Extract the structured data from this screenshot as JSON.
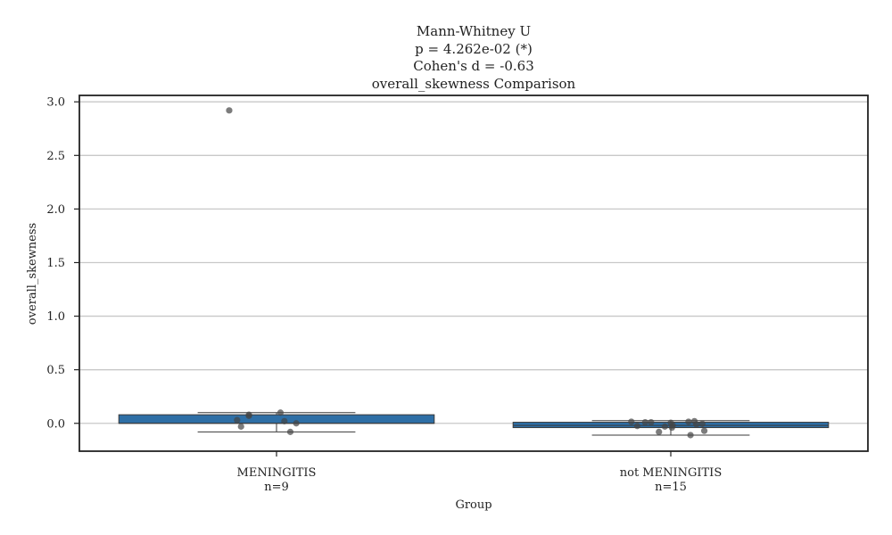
{
  "chart_data": {
    "type": "box",
    "title_lines": [
      "Mann-Whitney U",
      "p = 4.262e-02 (*)",
      "Cohen's d = -0.63",
      "overall_skewness Comparison"
    ],
    "xlabel": "Group",
    "ylabel": "overall_skewness",
    "ylim": [
      -0.26,
      3.06
    ],
    "yticks": [
      0.0,
      0.5,
      1.0,
      1.5,
      2.0,
      2.5,
      3.0
    ],
    "ytick_labels": [
      "0.0",
      "0.5",
      "1.0",
      "1.5",
      "2.0",
      "2.5",
      "3.0"
    ],
    "grid": true,
    "box_color": "#2e6fa6",
    "point_color": "#444444",
    "groups": [
      {
        "name": "MENINGITIS",
        "n_label": "n=9",
        "box": {
          "q1": 0.0,
          "median": 0.0,
          "q3": 0.08,
          "whisker_low": -0.08,
          "whisker_high": 0.1
        },
        "points": [
          {
            "x": -0.12,
            "y": 2.92
          },
          {
            "x": -0.1,
            "y": 0.03
          },
          {
            "x": -0.09,
            "y": -0.03
          },
          {
            "x": -0.07,
            "y": 0.08
          },
          {
            "x": 0.01,
            "y": 0.1
          },
          {
            "x": 0.02,
            "y": 0.02
          },
          {
            "x": 0.035,
            "y": -0.08
          },
          {
            "x": 0.05,
            "y": 0.0
          },
          {
            "x": -0.07,
            "y": 0.07
          }
        ]
      },
      {
        "name": "not MENINGITIS",
        "n_label": "n=15",
        "box": {
          "q1": -0.04,
          "median": -0.02,
          "q3": 0.01,
          "whisker_low": -0.11,
          "whisker_high": 0.025
        },
        "points": [
          {
            "x": -0.1,
            "y": 0.015
          },
          {
            "x": -0.085,
            "y": -0.025
          },
          {
            "x": -0.065,
            "y": 0.01
          },
          {
            "x": -0.05,
            "y": 0.01
          },
          {
            "x": -0.03,
            "y": -0.08
          },
          {
            "x": -0.015,
            "y": -0.03
          },
          {
            "x": 0.0,
            "y": 0.005
          },
          {
            "x": 0.005,
            "y": -0.02
          },
          {
            "x": 0.003,
            "y": -0.04
          },
          {
            "x": 0.045,
            "y": 0.015
          },
          {
            "x": 0.05,
            "y": -0.11
          },
          {
            "x": 0.06,
            "y": 0.02
          },
          {
            "x": 0.065,
            "y": -0.01
          },
          {
            "x": 0.08,
            "y": -0.005
          },
          {
            "x": 0.085,
            "y": -0.07
          }
        ]
      }
    ]
  }
}
